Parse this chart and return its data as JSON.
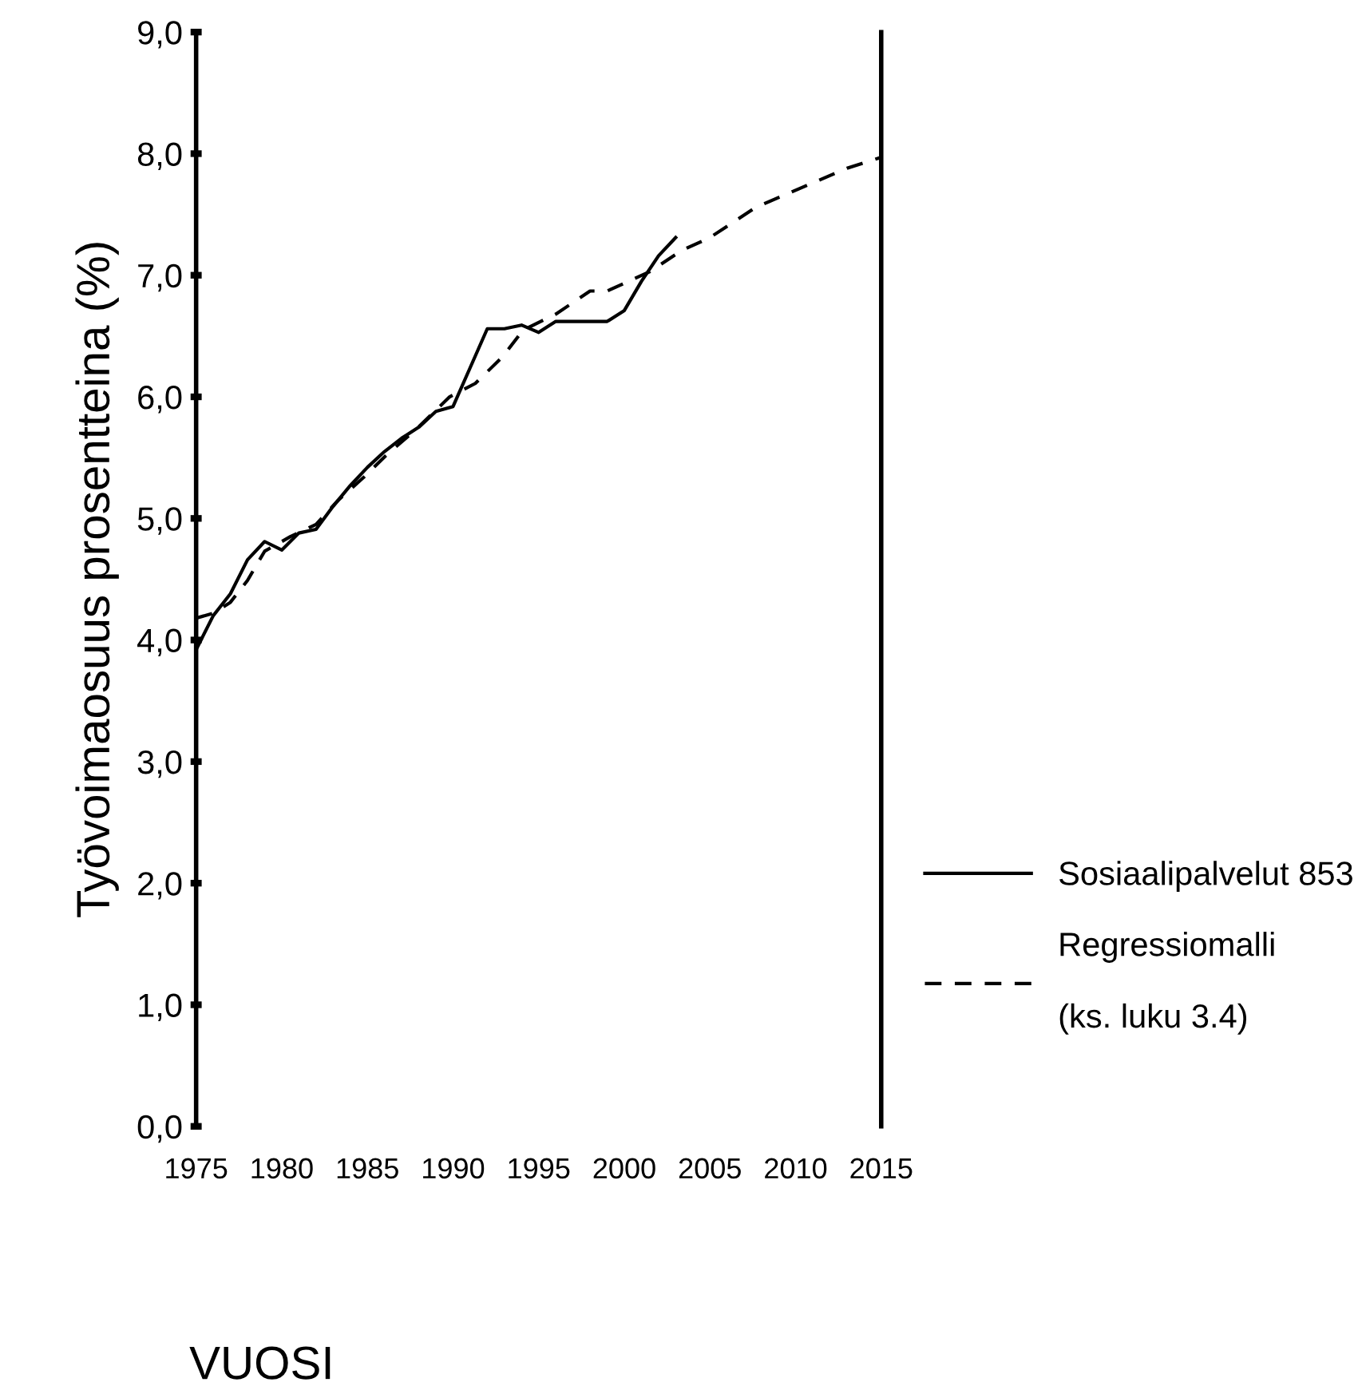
{
  "chart_data": {
    "type": "line",
    "xlabel": "VUOSI",
    "ylabel": "Työvoimaosuus prosentteina (%)",
    "xlim": [
      1975,
      2015
    ],
    "xticks": [
      1975,
      1980,
      1985,
      1990,
      1995,
      2000,
      2005,
      2010,
      2015
    ],
    "ylim": [
      0,
      9
    ],
    "yticks": [
      {
        "value": 0,
        "label": "0,0"
      },
      {
        "value": 1,
        "label": "1,0"
      },
      {
        "value": 2,
        "label": "2,0"
      },
      {
        "value": 3,
        "label": "3,0"
      },
      {
        "value": 4,
        "label": "4,0"
      },
      {
        "value": 5,
        "label": "5,0"
      },
      {
        "value": 6,
        "label": "6,0"
      },
      {
        "value": 7,
        "label": "7,0"
      },
      {
        "value": 8,
        "label": "8,0"
      },
      {
        "value": 9,
        "label": "9,0"
      }
    ],
    "grid": false,
    "legend": "right",
    "marker": "none",
    "series": [
      {
        "name": "Sosiaalipalvelut 853",
        "color": "#000000",
        "line_style": "solid",
        "x": [
          1975,
          1976,
          1977,
          1978,
          1979,
          1980,
          1981,
          1982,
          1983,
          1984,
          1985,
          1986,
          1987,
          1988,
          1989,
          1990,
          1991,
          1992,
          1993,
          1994,
          1995,
          1996,
          1997,
          1998,
          1999,
          2000,
          2001,
          2002,
          2003
        ],
        "values": [
          3.92,
          4.2,
          4.38,
          4.66,
          4.81,
          4.74,
          4.88,
          4.91,
          5.1,
          5.27,
          5.42,
          5.55,
          5.66,
          5.75,
          5.88,
          5.92,
          6.24,
          6.56,
          6.56,
          6.59,
          6.53,
          6.62,
          6.62,
          6.62,
          6.62,
          6.71,
          6.95,
          7.16,
          7.31
        ]
      },
      {
        "name": "Regressiomalli\n\n(ks. luku 3.4)",
        "color": "#000000",
        "line_style": "dashed",
        "x": [
          1975,
          1976,
          1977,
          1978,
          1979,
          1980.5,
          1982,
          1983.3,
          1984.8,
          1986.1,
          1987.9,
          1989.8,
          1991.3,
          1992.9,
          1994.1,
          1996,
          1998,
          1999,
          2001.5,
          2003.3,
          2005,
          2007.7,
          2013,
          2015
        ],
        "values": [
          4.18,
          4.22,
          4.31,
          4.49,
          4.73,
          4.85,
          4.95,
          5.15,
          5.34,
          5.52,
          5.74,
          6.0,
          6.11,
          6.33,
          6.55,
          6.68,
          6.87,
          6.87,
          7.03,
          7.2,
          7.31,
          7.56,
          7.88,
          7.97
        ]
      }
    ]
  }
}
